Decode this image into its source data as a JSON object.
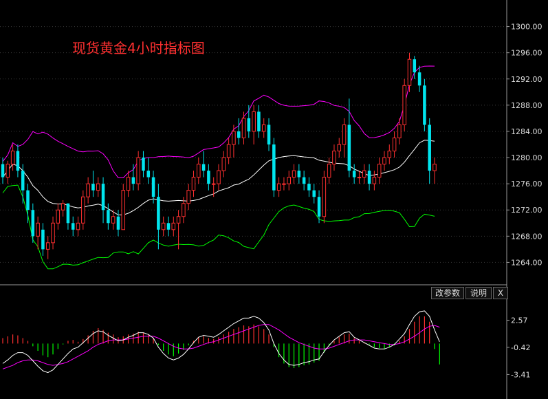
{
  "chart_data": [
    {
      "type": "candlestick",
      "title": "现货黄金4小时指标图",
      "y_axis_position": "right",
      "ylim": [
        1261,
        1303
      ],
      "y_ticks": [
        "1300.00",
        "1296.00",
        "1292.00",
        "1288.00",
        "1284.00",
        "1280.00",
        "1276.00",
        "1272.00",
        "1268.00",
        "1264.00"
      ],
      "grid": "horizontal-dotted",
      "series": [
        {
          "kind": "candles",
          "up_color": "#ff3030",
          "down_color": "#00e5ee"
        },
        {
          "kind": "line",
          "role": "middle-band",
          "color": "#ffffff"
        },
        {
          "kind": "line",
          "role": "upper-band",
          "color": "#ff00ff"
        },
        {
          "kind": "line",
          "role": "lower-band",
          "color": "#00ff00"
        }
      ],
      "candles": [
        [
          1279,
          1280,
          1276,
          1277
        ],
        [
          1277,
          1279.5,
          1276,
          1279
        ],
        [
          1279,
          1282,
          1278,
          1281
        ],
        [
          1281,
          1282,
          1277,
          1278
        ],
        [
          1278,
          1279,
          1273,
          1275
        ],
        [
          1275,
          1276,
          1270,
          1272
        ],
        [
          1272,
          1273,
          1267,
          1268
        ],
        [
          1268,
          1271,
          1266,
          1270
        ],
        [
          1269,
          1270,
          1265,
          1266
        ],
        [
          1266,
          1268,
          1264.5,
          1267
        ],
        [
          1267,
          1271,
          1266,
          1270
        ],
        [
          1270,
          1273,
          1269,
          1272
        ],
        [
          1272,
          1273.5,
          1271,
          1273
        ],
        [
          1273,
          1273,
          1269,
          1270
        ],
        [
          1270,
          1271,
          1268,
          1269
        ],
        [
          1269,
          1271,
          1268,
          1270
        ],
        [
          1270,
          1275,
          1269,
          1274
        ],
        [
          1274,
          1277,
          1273,
          1276
        ],
        [
          1276,
          1278,
          1274,
          1275
        ],
        [
          1275,
          1277,
          1274,
          1276
        ],
        [
          1276,
          1277,
          1270,
          1272
        ],
        [
          1272,
          1273,
          1269,
          1270
        ],
        [
          1270,
          1272,
          1269,
          1271
        ],
        [
          1271,
          1272,
          1268,
          1269
        ],
        [
          1269,
          1276,
          1269,
          1275
        ],
        [
          1275,
          1278,
          1274,
          1277
        ],
        [
          1277,
          1279,
          1275,
          1276
        ],
        [
          1276,
          1281,
          1275,
          1280
        ],
        [
          1280,
          1281,
          1277,
          1278
        ],
        [
          1278,
          1280,
          1276,
          1277
        ],
        [
          1277,
          1278,
          1273,
          1274
        ],
        [
          1274,
          1276,
          1266,
          1269
        ],
        [
          1269,
          1271,
          1268,
          1270
        ],
        [
          1270,
          1271,
          1268,
          1269
        ],
        [
          1269,
          1271,
          1268,
          1270
        ],
        [
          1270,
          1272,
          1266,
          1271
        ],
        [
          1271,
          1274,
          1270,
          1273
        ],
        [
          1273,
          1276,
          1272,
          1275
        ],
        [
          1275,
          1278,
          1274,
          1277
        ],
        [
          1277,
          1280,
          1276,
          1279
        ],
        [
          1279,
          1281,
          1277,
          1278
        ],
        [
          1278,
          1279,
          1275,
          1276
        ],
        [
          1276,
          1277,
          1274,
          1276
        ],
        [
          1276,
          1279,
          1275,
          1278
        ],
        [
          1278,
          1281,
          1277,
          1280
        ],
        [
          1280,
          1283,
          1279,
          1282
        ],
        [
          1282,
          1285,
          1280,
          1284
        ],
        [
          1284,
          1286,
          1282,
          1283
        ],
        [
          1283,
          1287,
          1282,
          1286
        ],
        [
          1286,
          1288,
          1283,
          1284
        ],
        [
          1284,
          1288,
          1282,
          1287
        ],
        [
          1287,
          1288,
          1283,
          1284
        ],
        [
          1284,
          1286,
          1283,
          1285
        ],
        [
          1285,
          1286,
          1281,
          1282
        ],
        [
          1282,
          1283,
          1274,
          1275
        ],
        [
          1275,
          1277,
          1274,
          1276
        ],
        [
          1276,
          1277,
          1275,
          1276
        ],
        [
          1276,
          1278,
          1275,
          1277
        ],
        [
          1277,
          1279,
          1276,
          1278
        ],
        [
          1278,
          1279,
          1276,
          1277
        ],
        [
          1277,
          1278,
          1275,
          1276
        ],
        [
          1276,
          1277,
          1274,
          1275
        ],
        [
          1275,
          1276,
          1273,
          1274
        ],
        [
          1274,
          1275,
          1270,
          1271
        ],
        [
          1271,
          1278,
          1270,
          1277
        ],
        [
          1277,
          1280,
          1276,
          1279
        ],
        [
          1279,
          1282,
          1278,
          1281
        ],
        [
          1281,
          1283,
          1280,
          1282
        ],
        [
          1282,
          1286,
          1280,
          1285
        ],
        [
          1285,
          1289,
          1277,
          1278
        ],
        [
          1278,
          1279,
          1276,
          1277
        ],
        [
          1277,
          1278,
          1276,
          1277
        ],
        [
          1277,
          1279,
          1276,
          1278
        ],
        [
          1278,
          1279,
          1275,
          1276
        ],
        [
          1276,
          1278,
          1275,
          1277
        ],
        [
          1277,
          1280,
          1276,
          1279
        ],
        [
          1279,
          1281,
          1278,
          1280
        ],
        [
          1280,
          1282,
          1279,
          1281
        ],
        [
          1281,
          1284,
          1280,
          1283
        ],
        [
          1283,
          1286,
          1282,
          1285
        ],
        [
          1285,
          1292,
          1284,
          1291
        ],
        [
          1291,
          1296,
          1290,
          1295
        ],
        [
          1295,
          1295.5,
          1292,
          1293
        ],
        [
          1293,
          1294,
          1290,
          1291
        ],
        [
          1291,
          1292,
          1284,
          1285
        ],
        [
          1285,
          1286,
          1276,
          1278
        ],
        [
          1278,
          1280,
          1276,
          1279
        ]
      ]
    },
    {
      "type": "macd",
      "ylim": [
        -5.5,
        4.5
      ],
      "y_ticks": [
        "2.57",
        "-0.42",
        "-3.41"
      ],
      "histogram": [
        0.6,
        0.8,
        1.0,
        0.9,
        0.6,
        0.3,
        -0.3,
        -0.8,
        -1.3,
        -1.5,
        -1.2,
        -0.6,
        -0.1,
        0.3,
        0.4,
        0.2,
        0.5,
        0.9,
        1.4,
        1.7,
        1.5,
        1.2,
        1.0,
        0.7,
        0.8,
        1.0,
        1.1,
        1.3,
        1.2,
        1.0,
        0.6,
        -0.2,
        -0.8,
        -1.2,
        -1.4,
        -1.1,
        -0.7,
        -0.2,
        0.3,
        0.7,
        0.8,
        0.6,
        0.5,
        0.7,
        1.0,
        1.3,
        1.6,
        1.8,
        2.0,
        1.9,
        2.1,
        1.9,
        1.6,
        1.0,
        -0.4,
        -1.5,
        -2.2,
        -2.6,
        -2.7,
        -2.6,
        -2.4,
        -2.3,
        -2.1,
        -1.9,
        -1.0,
        -0.3,
        0.3,
        0.7,
        1.0,
        1.1,
        0.6,
        0.3,
        0.1,
        -0.1,
        -0.4,
        -0.5,
        -0.6,
        -0.4,
        -0.2,
        0.3,
        0.8,
        1.6,
        2.4,
        3.0,
        3.0,
        2.4,
        -0.6,
        -2.3
      ],
      "dif": [
        -2.2,
        -1.8,
        -1.3,
        -1.0,
        -1.0,
        -1.3,
        -1.9,
        -2.5,
        -3.0,
        -3.2,
        -2.9,
        -2.3,
        -1.7,
        -1.1,
        -0.6,
        -0.4,
        0.1,
        0.6,
        1.1,
        1.4,
        1.3,
        0.9,
        0.6,
        0.3,
        0.4,
        0.7,
        0.9,
        1.2,
        1.2,
        1.0,
        0.6,
        -0.4,
        -1.1,
        -1.6,
        -1.8,
        -1.6,
        -1.2,
        -0.6,
        0.1,
        0.7,
        0.9,
        0.8,
        0.7,
        1.0,
        1.4,
        1.8,
        2.2,
        2.5,
        2.8,
        2.8,
        3.0,
        2.8,
        2.3,
        1.5,
        0.0,
        -1.1,
        -1.8,
        -2.3,
        -2.4,
        -2.3,
        -2.1,
        -2.0,
        -1.8,
        -1.7,
        -0.9,
        -0.2,
        0.4,
        0.8,
        1.2,
        1.3,
        0.7,
        0.4,
        0.1,
        -0.2,
        -0.5,
        -0.6,
        -0.6,
        -0.4,
        -0.1,
        0.5,
        1.1,
        2.1,
        3.0,
        3.5,
        3.6,
        3.0,
        1.5,
        0.2
      ],
      "dea": [
        -2.8,
        -2.6,
        -2.4,
        -2.1,
        -1.9,
        -1.8,
        -1.8,
        -1.9,
        -2.1,
        -2.3,
        -2.4,
        -2.3,
        -2.2,
        -2.0,
        -1.7,
        -1.4,
        -1.1,
        -0.8,
        -0.4,
        -0.1,
        0.1,
        0.3,
        0.4,
        0.4,
        0.4,
        0.5,
        0.6,
        0.7,
        0.8,
        0.8,
        0.8,
        0.6,
        0.3,
        0.0,
        -0.3,
        -0.5,
        -0.6,
        -0.6,
        -0.5,
        -0.3,
        -0.1,
        0.1,
        0.2,
        0.4,
        0.6,
        0.8,
        1.0,
        1.2,
        1.4,
        1.6,
        1.8,
        2.0,
        2.1,
        2.1,
        1.8,
        1.5,
        1.1,
        0.7,
        0.4,
        0.1,
        -0.1,
        -0.3,
        -0.5,
        -0.6,
        -0.6,
        -0.5,
        -0.3,
        -0.1,
        0.1,
        0.3,
        0.4,
        0.4,
        0.4,
        0.3,
        0.2,
        0.1,
        0.0,
        -0.1,
        -0.1,
        0.0,
        0.2,
        0.5,
        0.8,
        1.2,
        1.6,
        1.9,
        2.0,
        1.8
      ]
    }
  ],
  "toolbar": {
    "params_label": "改参数",
    "help_label": "说明",
    "close_label": "X"
  },
  "colors": {
    "up": "#ff3030",
    "down": "#00e5ee",
    "mid": "#ffffff",
    "upper": "#ff00ff",
    "lower": "#00ff00",
    "macd_up": "#ff3030",
    "macd_down": "#00ff00",
    "title": "#ff3030"
  }
}
